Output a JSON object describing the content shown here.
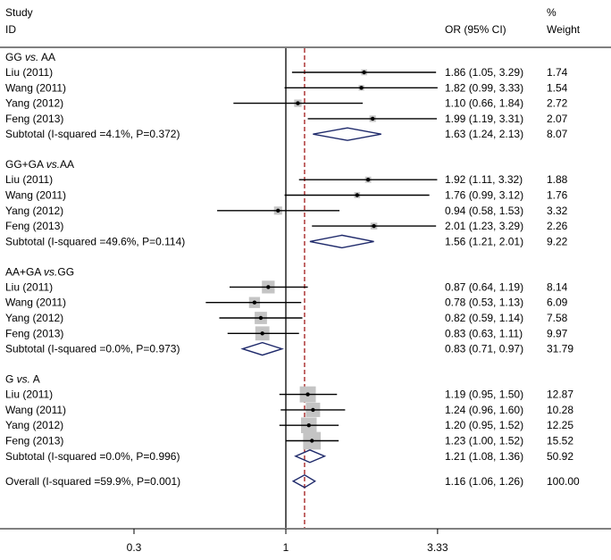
{
  "chart_data": {
    "type": "forest",
    "title": "",
    "xlabel": "",
    "ylabel": "",
    "x_scale": "log",
    "xlim": [
      0.1,
      10
    ],
    "x_ticks": [
      0.3,
      1,
      3.33
    ],
    "x_tick_labels": [
      "0.3",
      "1",
      "3.33"
    ],
    "null_line": 1,
    "overall_line": 1.16,
    "grid": false,
    "header": {
      "study_label": "Study",
      "id_label": "ID",
      "or_label": "OR (95% CI)",
      "weight_label_line1": "%",
      "weight_label_line2": "Weight"
    },
    "groups": [
      {
        "title": "GG vs. AA",
        "title_main": "GG ",
        "title_italic": "vs.",
        "title_rest": " AA",
        "studies": [
          {
            "id": "Liu (2011)",
            "or": 1.86,
            "lo": 1.05,
            "hi": 3.29,
            "ci_text": "1.86 (1.05, 3.29)",
            "weight": 1.74,
            "weight_text": "1.74"
          },
          {
            "id": "Wang (2011)",
            "or": 1.82,
            "lo": 0.99,
            "hi": 3.33,
            "ci_text": "1.82 (0.99, 3.33)",
            "weight": 1.54,
            "weight_text": "1.54"
          },
          {
            "id": "Yang (2012)",
            "or": 1.1,
            "lo": 0.66,
            "hi": 1.84,
            "ci_text": "1.10 (0.66, 1.84)",
            "weight": 2.72,
            "weight_text": "2.72"
          },
          {
            "id": "Feng (2013)",
            "or": 1.99,
            "lo": 1.19,
            "hi": 3.31,
            "ci_text": "1.99 (1.19, 3.31)",
            "weight": 2.07,
            "weight_text": "2.07"
          }
        ],
        "subtotal": {
          "label": "Subtotal  (I-squared =4.1%, P=0.372)",
          "or": 1.63,
          "lo": 1.24,
          "hi": 2.13,
          "ci_text": "1.63 (1.24, 2.13)",
          "weight_text": "8.07"
        }
      },
      {
        "title": "GG+GA vs.AA",
        "title_main": "GG+GA ",
        "title_italic": "vs.",
        "title_rest": "AA",
        "studies": [
          {
            "id": "Liu (2011)",
            "or": 1.92,
            "lo": 1.11,
            "hi": 3.32,
            "ci_text": "1.92 (1.11, 3.32)",
            "weight": 1.88,
            "weight_text": "1.88"
          },
          {
            "id": "Wang (2011)",
            "or": 1.76,
            "lo": 0.99,
            "hi": 3.12,
            "ci_text": "1.76 (0.99, 3.12)",
            "weight": 1.76,
            "weight_text": "1.76"
          },
          {
            "id": "Yang (2012)",
            "or": 0.94,
            "lo": 0.58,
            "hi": 1.53,
            "ci_text": "0.94 (0.58, 1.53)",
            "weight": 3.32,
            "weight_text": "3.32"
          },
          {
            "id": "Feng (2013)",
            "or": 2.01,
            "lo": 1.23,
            "hi": 3.29,
            "ci_text": "2.01 (1.23, 3.29)",
            "weight": 2.26,
            "weight_text": "2.26"
          }
        ],
        "subtotal": {
          "label": "Subtotal  (I-squared =49.6%, P=0.114)",
          "or": 1.56,
          "lo": 1.21,
          "hi": 2.01,
          "ci_text": "1.56 (1.21, 2.01)",
          "weight_text": "9.22"
        }
      },
      {
        "title": "AA+GA vs.GG",
        "title_main": "AA+GA ",
        "title_italic": "vs.",
        "title_rest": "GG",
        "studies": [
          {
            "id": "Liu (2011)",
            "or": 0.87,
            "lo": 0.64,
            "hi": 1.19,
            "ci_text": "0.87 (0.64, 1.19)",
            "weight": 8.14,
            "weight_text": "8.14"
          },
          {
            "id": "Wang (2011)",
            "or": 0.78,
            "lo": 0.53,
            "hi": 1.13,
            "ci_text": "0.78 (0.53, 1.13)",
            "weight": 6.09,
            "weight_text": "6.09"
          },
          {
            "id": "Yang (2012)",
            "or": 0.82,
            "lo": 0.59,
            "hi": 1.14,
            "ci_text": "0.82 (0.59, 1.14)",
            "weight": 7.58,
            "weight_text": "7.58"
          },
          {
            "id": "Feng (2013)",
            "or": 0.83,
            "lo": 0.63,
            "hi": 1.11,
            "ci_text": "0.83 (0.63, 1.11)",
            "weight": 9.97,
            "weight_text": "9.97"
          }
        ],
        "subtotal": {
          "label": "Subtotal  (I-squared =0.0%, P=0.973)",
          "or": 0.83,
          "lo": 0.71,
          "hi": 0.97,
          "ci_text": "0.83 (0.71, 0.97)",
          "weight_text": "31.79"
        }
      },
      {
        "title": "G vs. A",
        "title_main": "G ",
        "title_italic": "vs.",
        "title_rest": " A",
        "studies": [
          {
            "id": "Liu (2011)",
            "or": 1.19,
            "lo": 0.95,
            "hi": 1.5,
            "ci_text": "1.19 (0.95, 1.50)",
            "weight": 12.87,
            "weight_text": "12.87"
          },
          {
            "id": "Wang (2011)",
            "or": 1.24,
            "lo": 0.96,
            "hi": 1.6,
            "ci_text": "1.24 (0.96, 1.60)",
            "weight": 10.28,
            "weight_text": "10.28"
          },
          {
            "id": "Yang (2012)",
            "or": 1.2,
            "lo": 0.95,
            "hi": 1.52,
            "ci_text": "1.20 (0.95, 1.52)",
            "weight": 12.25,
            "weight_text": "12.25"
          },
          {
            "id": "Feng (2013)",
            "or": 1.23,
            "lo": 1.0,
            "hi": 1.52,
            "ci_text": "1.23 (1.00, 1.52)",
            "weight": 15.52,
            "weight_text": "15.52"
          }
        ],
        "subtotal": {
          "label": "Subtotal  (I-squared =0.0%, P=0.996)",
          "or": 1.21,
          "lo": 1.08,
          "hi": 1.36,
          "ci_text": "1.21 (1.08, 1.36)",
          "weight_text": "50.92"
        }
      }
    ],
    "overall": {
      "label": "Overall  (I-squared =59.9%, P=0.001)",
      "or": 1.16,
      "lo": 1.06,
      "hi": 1.26,
      "ci_text": "1.16 (1.06, 1.26)",
      "weight_text": "100.00"
    },
    "colors": {
      "diamond": "#1f2a6b",
      "overall_line": "#a01818",
      "box": "#c4c4c4",
      "line": "#000000"
    }
  }
}
